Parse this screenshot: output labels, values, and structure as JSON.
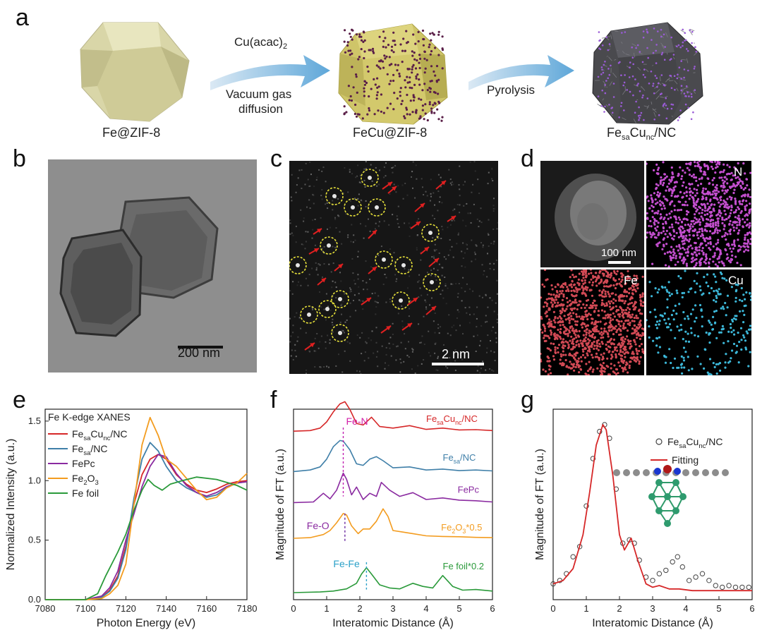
{
  "panel_a": {
    "letter": "a",
    "step1_label": "Fe@ZIF-8",
    "arrow1_top": "Cu(acac)",
    "arrow1_top_sub": "2",
    "arrow1_bottom_line1": "Vacuum gas",
    "arrow1_bottom_line2": "diffusion",
    "step2_label": "FeCu@ZIF-8",
    "arrow2_label": "Pyrolysis",
    "step3_label_pre": "Fe",
    "step3_label_sub1": "sa",
    "step3_label_mid": "Cu",
    "step3_label_sub2": "nc",
    "step3_label_post": "/NC"
  },
  "panel_b": {
    "letter": "b",
    "scale": "200 nm"
  },
  "panel_c": {
    "letter": "c",
    "scale": "2 nm"
  },
  "panel_d": {
    "letter": "d",
    "scale": "100 nm",
    "map_n": "N",
    "map_fe": "Fe",
    "map_cu": "Cu"
  },
  "colors": {
    "FesaCunc": "#d62728",
    "Fesa": "#3f7fa8",
    "FePc": "#8a2aa0",
    "Fe2O3": "#f39c1f",
    "Fefoil": "#2a9a3a",
    "fit": "#d62728"
  },
  "chart_data": [
    {
      "panel": "e",
      "type": "line",
      "title": "Fe K-edge XANES",
      "xlabel": "Photon Energy (eV)",
      "ylabel": "Normalized Intensity (a.u.)",
      "xlim": [
        7080,
        7180
      ],
      "ylim": [
        0.0,
        1.6
      ],
      "xticks": [
        "7080",
        "7100",
        "7120",
        "7140",
        "7160",
        "7180"
      ],
      "yticks": [
        "0.0",
        "0.5",
        "1.0",
        "1.5"
      ],
      "series": [
        {
          "name": "Fe_sa Cu_nc/NC",
          "key": "FesaCunc",
          "x": [
            7080,
            7100,
            7108,
            7112,
            7116,
            7120,
            7124,
            7128,
            7132,
            7136,
            7140,
            7145,
            7150,
            7155,
            7160,
            7165,
            7170,
            7175,
            7180
          ],
          "y": [
            0.0,
            0.0,
            0.02,
            0.08,
            0.2,
            0.45,
            0.8,
            1.05,
            1.18,
            1.22,
            1.18,
            1.05,
            0.97,
            0.92,
            0.9,
            0.93,
            0.97,
            0.99,
            1.0
          ]
        },
        {
          "name": "Fe_sa/NC",
          "key": "Fesa",
          "x": [
            7080,
            7100,
            7108,
            7112,
            7116,
            7120,
            7124,
            7128,
            7132,
            7136,
            7140,
            7145,
            7150,
            7155,
            7160,
            7165,
            7170,
            7175,
            7180
          ],
          "y": [
            0.0,
            0.0,
            0.02,
            0.07,
            0.18,
            0.42,
            0.85,
            1.18,
            1.32,
            1.25,
            1.12,
            1.0,
            0.94,
            0.9,
            0.86,
            0.88,
            0.94,
            0.98,
            0.99
          ]
        },
        {
          "name": "FePc",
          "key": "FePc",
          "x": [
            7080,
            7100,
            7108,
            7112,
            7116,
            7120,
            7124,
            7128,
            7132,
            7136,
            7140,
            7145,
            7150,
            7155,
            7160,
            7165,
            7170,
            7175,
            7180
          ],
          "y": [
            0.0,
            0.0,
            0.03,
            0.1,
            0.24,
            0.5,
            0.72,
            0.95,
            1.12,
            1.22,
            1.2,
            1.06,
            0.96,
            0.9,
            0.87,
            0.9,
            0.95,
            0.98,
            0.99
          ]
        },
        {
          "name": "Fe2O3",
          "key": "Fe2O3",
          "x": [
            7080,
            7100,
            7108,
            7112,
            7116,
            7120,
            7124,
            7128,
            7132,
            7136,
            7140,
            7145,
            7150,
            7155,
            7160,
            7165,
            7170,
            7175,
            7180
          ],
          "y": [
            0.0,
            0.0,
            0.01,
            0.05,
            0.12,
            0.3,
            0.8,
            1.3,
            1.53,
            1.38,
            1.18,
            1.12,
            1.02,
            0.92,
            0.84,
            0.86,
            0.94,
            0.98,
            1.06
          ]
        },
        {
          "name": "Fe foil",
          "key": "Fefoil",
          "x": [
            7080,
            7100,
            7106,
            7110,
            7113,
            7116,
            7120,
            7124,
            7128,
            7131,
            7134,
            7138,
            7142,
            7148,
            7155,
            7165,
            7175,
            7180
          ],
          "y": [
            0.0,
            0.0,
            0.05,
            0.2,
            0.3,
            0.4,
            0.55,
            0.75,
            0.92,
            1.01,
            0.96,
            0.92,
            0.97,
            1.0,
            1.03,
            1.01,
            0.96,
            0.92
          ]
        }
      ]
    },
    {
      "panel": "f",
      "type": "line",
      "xlabel": "Interatomic Distance (Å)",
      "ylabel": "Magnitude of FT (a.u.)",
      "xlim": [
        0,
        6
      ],
      "xticks": [
        "0",
        "1",
        "2",
        "3",
        "4",
        "5",
        "6"
      ],
      "annotations": [
        {
          "text": "Fe-N",
          "x": 1.5,
          "color": "#d21fa8"
        },
        {
          "text": "Fe-O",
          "x": 1.55,
          "color": "#8a2aa0"
        },
        {
          "text": "Fe-Fe",
          "x": 2.2,
          "color": "#2aa0c8"
        }
      ],
      "series": [
        {
          "name": "Fe_sa Cu_nc/NC",
          "key": "FesaCunc",
          "offset": 5.2,
          "x": [
            0,
            0.5,
            0.8,
            1.0,
            1.2,
            1.4,
            1.55,
            1.7,
            1.9,
            2.1,
            2.35,
            2.6,
            3.0,
            3.5,
            4.0,
            4.5,
            5.0,
            5.5,
            6.0
          ],
          "y": [
            0.0,
            0.02,
            0.1,
            0.3,
            0.62,
            0.88,
            0.95,
            0.7,
            0.25,
            0.2,
            0.45,
            0.15,
            0.1,
            0.18,
            0.06,
            0.1,
            0.04,
            0.05,
            0.02
          ]
        },
        {
          "name": "Fe_sa/NC",
          "key": "Fesa",
          "offset": 3.9,
          "x": [
            0,
            0.5,
            0.8,
            1.0,
            1.2,
            1.4,
            1.5,
            1.7,
            1.9,
            2.1,
            2.3,
            2.5,
            2.7,
            3.0,
            3.5,
            4.0,
            4.5,
            5.0,
            5.5,
            6.0
          ],
          "y": [
            0.0,
            0.05,
            0.15,
            0.4,
            0.8,
            1.0,
            0.98,
            0.7,
            0.25,
            0.2,
            0.4,
            0.48,
            0.35,
            0.12,
            0.15,
            0.05,
            0.08,
            0.03,
            0.05,
            0.02
          ]
        },
        {
          "name": "FePc",
          "key": "FePc",
          "offset": 2.9,
          "x": [
            0,
            0.6,
            0.9,
            1.1,
            1.3,
            1.5,
            1.6,
            1.75,
            1.9,
            2.1,
            2.3,
            2.5,
            2.65,
            2.9,
            3.2,
            3.6,
            4.0,
            4.5,
            5.0,
            5.5,
            6.0
          ],
          "y": [
            0.0,
            0.02,
            0.3,
            0.12,
            0.4,
            0.95,
            0.75,
            0.25,
            0.5,
            0.1,
            0.3,
            0.2,
            0.65,
            0.4,
            0.2,
            0.32,
            0.1,
            0.15,
            0.08,
            0.06,
            0.02
          ]
        },
        {
          "name": "Fe2O3*0.5",
          "key": "Fe2O3",
          "offset": 1.75,
          "x": [
            0,
            0.5,
            0.9,
            1.1,
            1.3,
            1.5,
            1.6,
            1.75,
            1.95,
            2.1,
            2.3,
            2.5,
            2.7,
            2.85,
            3.0,
            3.3,
            3.6,
            4.0,
            4.5,
            5.0,
            5.5,
            6.0
          ],
          "y": [
            0.0,
            0.02,
            0.12,
            0.25,
            0.5,
            0.8,
            0.75,
            0.4,
            0.15,
            0.3,
            0.3,
            0.55,
            0.95,
            0.7,
            0.25,
            0.2,
            0.15,
            0.08,
            0.06,
            0.05,
            0.03,
            0.02
          ]
        },
        {
          "name": "Fe foil*0.2",
          "key": "Fefoil",
          "offset": 0.0,
          "x": [
            0,
            0.8,
            1.2,
            1.6,
            1.9,
            2.05,
            2.2,
            2.35,
            2.6,
            2.9,
            3.2,
            3.6,
            3.9,
            4.2,
            4.5,
            4.8,
            5.1,
            5.5,
            6.0
          ],
          "y": [
            0.0,
            0.02,
            0.05,
            0.12,
            0.3,
            0.6,
            0.8,
            0.6,
            0.25,
            0.15,
            0.12,
            0.3,
            0.2,
            0.15,
            0.55,
            0.2,
            0.08,
            0.1,
            0.05
          ]
        }
      ],
      "labels": [
        "Fe_sa Cu_nc/NC",
        "Fe_sa/NC",
        "FePc",
        "Fe2O3*0.5",
        "Fe foil*0.2"
      ]
    },
    {
      "panel": "g",
      "type": "line",
      "xlabel": "Interatomic Distance (Å)",
      "ylabel": "Magnitude of FT (a.u.)",
      "xlim": [
        0,
        6
      ],
      "xticks": [
        "0",
        "1",
        "2",
        "3",
        "4",
        "5",
        "6"
      ],
      "legend": [
        "Fe_sa Cu_nc/NC",
        "Fitting"
      ],
      "fitting": {
        "x": [
          0,
          0.3,
          0.6,
          0.9,
          1.1,
          1.3,
          1.5,
          1.6,
          1.8,
          2.0,
          2.15,
          2.35,
          2.55,
          2.8,
          3.0,
          3.2,
          3.5,
          3.8,
          4.2,
          6.0
        ],
        "y": [
          0.06,
          0.08,
          0.15,
          0.35,
          0.6,
          0.88,
          1.0,
          0.97,
          0.7,
          0.35,
          0.26,
          0.33,
          0.2,
          0.06,
          0.04,
          0.05,
          0.03,
          0.03,
          0.02,
          0.02
        ]
      },
      "data": {
        "x": [
          0,
          0.2,
          0.4,
          0.6,
          0.8,
          1.0,
          1.2,
          1.4,
          1.55,
          1.7,
          1.9,
          2.1,
          2.3,
          2.45,
          2.6,
          2.8,
          3.0,
          3.2,
          3.4,
          3.6,
          3.75,
          3.9,
          4.1,
          4.3,
          4.5,
          4.7,
          4.9,
          5.1,
          5.3,
          5.5,
          5.7,
          5.9
        ],
        "y": [
          0.06,
          0.08,
          0.12,
          0.22,
          0.28,
          0.52,
          0.8,
          0.96,
          1.0,
          0.92,
          0.62,
          0.3,
          0.32,
          0.3,
          0.2,
          0.1,
          0.08,
          0.12,
          0.14,
          0.19,
          0.22,
          0.16,
          0.08,
          0.1,
          0.12,
          0.08,
          0.05,
          0.04,
          0.05,
          0.04,
          0.04,
          0.04
        ]
      }
    }
  ]
}
